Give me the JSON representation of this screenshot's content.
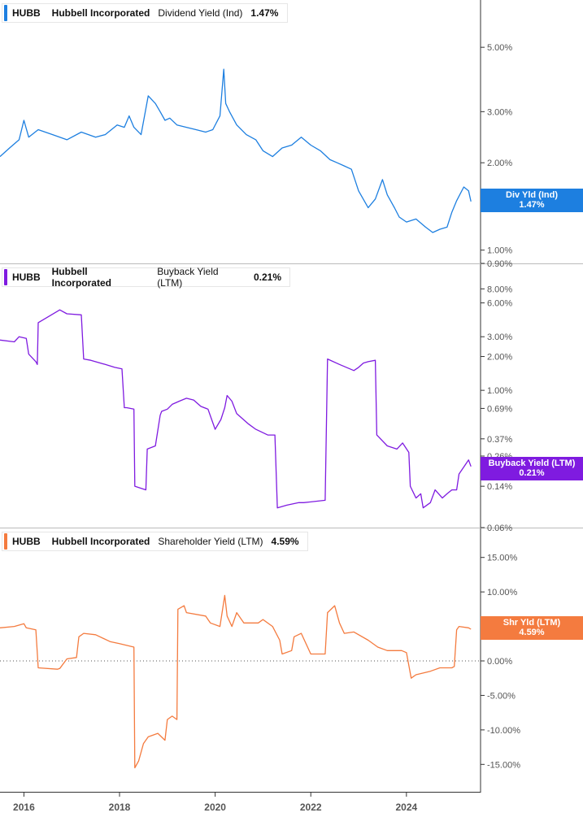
{
  "chart_data": [
    {
      "type": "line",
      "ticker": "HUBB",
      "company": "Hubbell Incorporated",
      "metric": "Dividend Yield (Ind)",
      "current_value": "1.47%",
      "tag_label": "Div Yld (Ind)",
      "tag_value": "1.47%",
      "color": "#1d7fe0",
      "scale": "log",
      "ylim": [
        0.9,
        7.0
      ],
      "yticks": [
        {
          "v": 5.0,
          "label": "5.00%"
        },
        {
          "v": 3.0,
          "label": "3.00%"
        },
        {
          "v": 2.0,
          "label": "2.00%"
        },
        {
          "v": 1.0,
          "label": "1.00%"
        },
        {
          "v": 0.9,
          "label": "0.90%"
        }
      ],
      "series": [
        {
          "x": [
            2015.5,
            2015.7,
            2015.9,
            2016.0,
            2016.1,
            2016.3,
            2016.6,
            2016.9,
            2017.2,
            2017.5,
            2017.7,
            2017.95,
            2018.1,
            2018.2,
            2018.3,
            2018.45,
            2018.6,
            2018.75,
            2018.85,
            2018.95,
            2019.05,
            2019.2,
            2019.4,
            2019.6,
            2019.8,
            2019.95,
            2020.1,
            2020.18,
            2020.22,
            2020.3,
            2020.45,
            2020.65,
            2020.85,
            2021.0,
            2021.2,
            2021.4,
            2021.6,
            2021.8,
            2022.0,
            2022.2,
            2022.4,
            2022.55,
            2022.7,
            2022.85,
            2023.0,
            2023.2,
            2023.35,
            2023.5,
            2023.6,
            2023.75,
            2023.85,
            2024.0,
            2024.2,
            2024.4,
            2024.55,
            2024.7,
            2024.85,
            2024.95,
            2025.05,
            2025.2,
            2025.3,
            2025.35
          ],
          "y": [
            2.1,
            2.25,
            2.4,
            2.8,
            2.45,
            2.6,
            2.5,
            2.4,
            2.55,
            2.45,
            2.5,
            2.7,
            2.65,
            2.9,
            2.65,
            2.5,
            3.4,
            3.2,
            3.0,
            2.8,
            2.85,
            2.7,
            2.65,
            2.6,
            2.55,
            2.6,
            2.9,
            4.2,
            3.2,
            3.0,
            2.7,
            2.5,
            2.4,
            2.2,
            2.1,
            2.25,
            2.3,
            2.45,
            2.3,
            2.2,
            2.05,
            2.0,
            1.95,
            1.9,
            1.6,
            1.4,
            1.5,
            1.75,
            1.55,
            1.4,
            1.3,
            1.25,
            1.28,
            1.2,
            1.15,
            1.18,
            1.2,
            1.35,
            1.48,
            1.65,
            1.6,
            1.47
          ]
        }
      ]
    },
    {
      "type": "line",
      "ticker": "HUBB",
      "company": "Hubbell Incorporated",
      "metric": "Buyback Yield (LTM)",
      "current_value": "0.21%",
      "tag_label": "Buyback Yield (LTM)",
      "tag_value": "0.21%",
      "color": "#7f1be0",
      "scale": "log",
      "ylim": [
        0.06,
        12.0
      ],
      "yticks": [
        {
          "v": 8.0,
          "label": "8.00%"
        },
        {
          "v": 6.0,
          "label": "6.00%"
        },
        {
          "v": 3.0,
          "label": "3.00%"
        },
        {
          "v": 2.0,
          "label": "2.00%"
        },
        {
          "v": 1.0,
          "label": "1.00%"
        },
        {
          "v": 0.69,
          "label": "0.69%"
        },
        {
          "v": 0.37,
          "label": "0.37%"
        },
        {
          "v": 0.26,
          "label": "0.26%"
        },
        {
          "v": 0.14,
          "label": "0.14%"
        },
        {
          "v": 0.06,
          "label": "0.06%"
        }
      ],
      "series": [
        {
          "x": [
            2015.5,
            2015.8,
            2015.9,
            2016.05,
            2016.1,
            2016.25,
            2016.28,
            2016.3,
            2016.5,
            2016.75,
            2016.9,
            2017.2,
            2017.25,
            2017.4,
            2017.7,
            2017.9,
            2018.05,
            2018.1,
            2018.15,
            2018.3,
            2018.32,
            2018.55,
            2018.58,
            2018.75,
            2018.85,
            2018.88,
            2019.0,
            2019.1,
            2019.25,
            2019.4,
            2019.55,
            2019.7,
            2019.85,
            2020.0,
            2020.12,
            2020.2,
            2020.25,
            2020.35,
            2020.45,
            2020.7,
            2020.85,
            2021.1,
            2021.25,
            2021.3,
            2021.5,
            2021.75,
            2021.85,
            2022.3,
            2022.35,
            2022.6,
            2022.9,
            2023.0,
            2023.1,
            2023.2,
            2023.35,
            2023.38,
            2023.6,
            2023.8,
            2023.92,
            2024.05,
            2024.08,
            2024.2,
            2024.3,
            2024.35,
            2024.5,
            2024.6,
            2024.75,
            2024.85,
            2024.95,
            2025.05,
            2025.1,
            2025.3,
            2025.35
          ],
          "y": [
            2.8,
            2.7,
            3.0,
            2.9,
            2.1,
            1.8,
            1.7,
            4.0,
            4.5,
            5.2,
            4.8,
            4.7,
            1.9,
            1.85,
            1.7,
            1.6,
            1.55,
            0.7,
            0.7,
            0.68,
            0.14,
            0.13,
            0.3,
            0.32,
            0.6,
            0.65,
            0.68,
            0.75,
            0.8,
            0.85,
            0.82,
            0.72,
            0.68,
            0.45,
            0.55,
            0.7,
            0.9,
            0.8,
            0.62,
            0.5,
            0.45,
            0.4,
            0.4,
            0.09,
            0.095,
            0.1,
            0.1,
            0.105,
            1.9,
            1.7,
            1.5,
            1.6,
            1.75,
            1.8,
            1.85,
            0.4,
            0.32,
            0.3,
            0.34,
            0.28,
            0.14,
            0.11,
            0.12,
            0.09,
            0.1,
            0.13,
            0.11,
            0.12,
            0.13,
            0.13,
            0.18,
            0.24,
            0.21
          ]
        }
      ]
    },
    {
      "type": "line",
      "ticker": "HUBB",
      "company": "Hubbell Incorporated",
      "metric": "Shareholder Yield (LTM)",
      "current_value": "4.59%",
      "tag_label": "Shr Yld (LTM)",
      "tag_value": "4.59%",
      "color": "#f47b3f",
      "scale": "linear",
      "ylim": [
        -18.5,
        18.5
      ],
      "zero_line": true,
      "yticks": [
        {
          "v": 15.0,
          "label": "15.00%"
        },
        {
          "v": 10.0,
          "label": "10.00%"
        },
        {
          "v": 5.0,
          "label": "5.00%"
        },
        {
          "v": 0.0,
          "label": "0.00%"
        },
        {
          "v": -5.0,
          "label": "-5.00%"
        },
        {
          "v": -10.0,
          "label": "-10.00%"
        },
        {
          "v": -15.0,
          "label": "-15.00%"
        }
      ],
      "series": [
        {
          "x": [
            2015.5,
            2015.8,
            2016.0,
            2016.05,
            2016.25,
            2016.3,
            2016.7,
            2016.75,
            2016.9,
            2017.1,
            2017.15,
            2017.25,
            2017.5,
            2017.8,
            2018.0,
            2018.3,
            2018.32,
            2018.4,
            2018.5,
            2018.6,
            2018.8,
            2018.95,
            2019.0,
            2019.1,
            2019.2,
            2019.22,
            2019.35,
            2019.4,
            2019.8,
            2019.9,
            2020.1,
            2020.2,
            2020.25,
            2020.35,
            2020.45,
            2020.6,
            2020.9,
            2021.0,
            2021.2,
            2021.35,
            2021.4,
            2021.6,
            2021.65,
            2021.8,
            2022.0,
            2022.05,
            2022.3,
            2022.35,
            2022.5,
            2022.6,
            2022.7,
            2022.9,
            2023.2,
            2023.4,
            2023.6,
            2023.9,
            2024.0,
            2024.1,
            2024.2,
            2024.5,
            2024.7,
            2024.95,
            2025.0,
            2025.05,
            2025.1,
            2025.3,
            2025.35
          ],
          "y": [
            4.8,
            5.0,
            5.4,
            4.8,
            4.5,
            -1.0,
            -1.2,
            -1.1,
            0.3,
            0.5,
            3.5,
            4.0,
            3.8,
            2.8,
            2.5,
            2.0,
            -15.5,
            -14.5,
            -12.0,
            -11.0,
            -10.5,
            -11.5,
            -8.5,
            -8.0,
            -8.5,
            7.5,
            8.0,
            7.0,
            6.5,
            5.5,
            5.0,
            9.5,
            6.5,
            5.0,
            7.0,
            5.5,
            5.5,
            6.0,
            5.0,
            3.0,
            1.0,
            1.5,
            3.5,
            4.0,
            1.0,
            1.0,
            1.0,
            7.0,
            8.0,
            5.5,
            4.0,
            4.2,
            3.0,
            2.0,
            1.5,
            1.5,
            1.2,
            -2.5,
            -2.0,
            -1.5,
            -1.0,
            -1.0,
            -0.8,
            4.5,
            5.0,
            4.8,
            4.59
          ]
        }
      ]
    }
  ],
  "x_axis": {
    "ticks": [
      {
        "v": 2016,
        "label": "2016"
      },
      {
        "v": 2018,
        "label": "2018"
      },
      {
        "v": 2020,
        "label": "2020"
      },
      {
        "v": 2022,
        "label": "2022"
      },
      {
        "v": 2024,
        "label": "2024"
      }
    ],
    "xlim": [
      2015.5,
      2025.55
    ]
  }
}
